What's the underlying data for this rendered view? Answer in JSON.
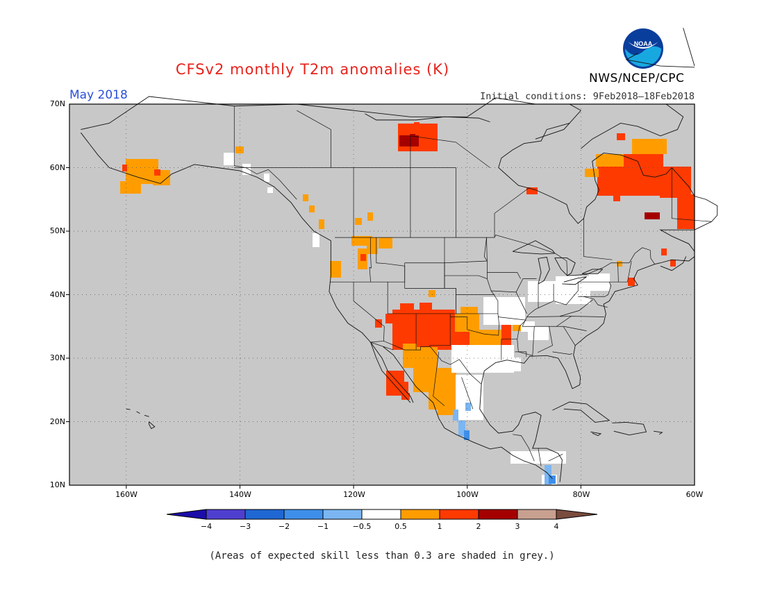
{
  "header": {
    "title": "CFSv2 monthly T2m anomalies (K)",
    "month": "May 2018",
    "initial_conditions": "Initial conditions: 9Feb2018–18Feb2018",
    "agency": "NWS/NCEP/CPC",
    "logo_text": "NOAA"
  },
  "map": {
    "lat_labels": [
      "70N",
      "60N",
      "50N",
      "40N",
      "30N",
      "20N",
      "10N"
    ],
    "lon_labels": [
      "160W",
      "140W",
      "120W",
      "100W",
      "80W",
      "60W"
    ],
    "lat_range": [
      10,
      70
    ],
    "lon_range": [
      -170,
      -60
    ],
    "background_color": "#c8c8c8",
    "land_outline_color": "#000000",
    "grid": "dotted"
  },
  "colorbar": {
    "labels": [
      "−4",
      "−3",
      "−2",
      "−1",
      "−0.5",
      "0.5",
      "1",
      "2",
      "3",
      "4"
    ],
    "colors": [
      "#1c0ca8",
      "#4f3fd0",
      "#1f67d2",
      "#3e8fea",
      "#7bb6f2",
      "#ffffff",
      "#ff9d00",
      "#ff3a00",
      "#a50000",
      "#c8a090",
      "#7a4c3e"
    ]
  },
  "anomaly_regions": [
    {
      "name": "alaska",
      "color": "#ff9d00"
    },
    {
      "name": "sw-us-mexico",
      "color": "#ff3a00"
    },
    {
      "name": "labrador-quebec",
      "color": "#ff3a00"
    },
    {
      "name": "gulf-coast",
      "color": "#ffffff"
    },
    {
      "name": "central-mexico",
      "color": "#7bb6f2"
    }
  ],
  "footnote": "(Areas of expected skill less than 0.3 are shaded in grey.)"
}
